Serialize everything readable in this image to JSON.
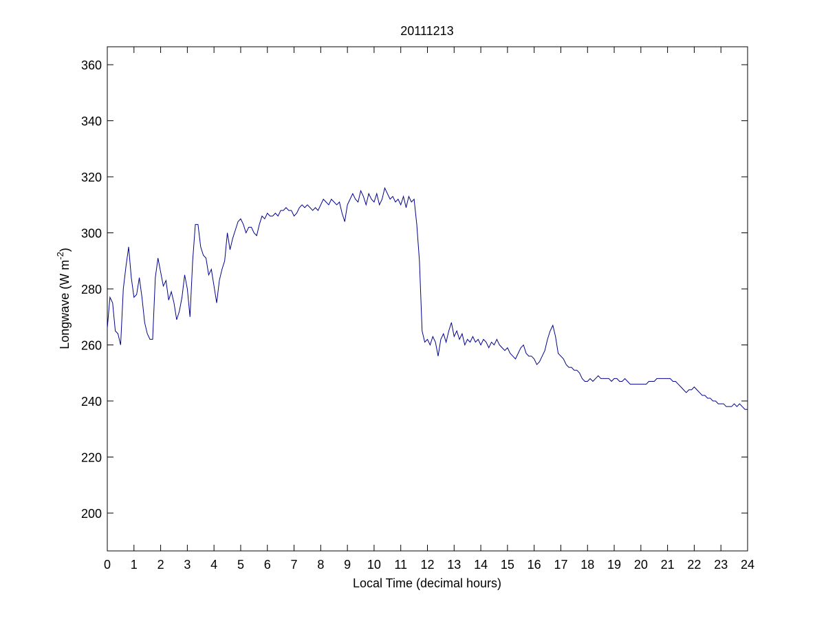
{
  "chart_data": {
    "type": "line",
    "title": "20111213",
    "xlabel": "Local Time (decimal hours)",
    "ylabel": [
      "Longwave (W m",
      "-2",
      ")"
    ],
    "xlim": [
      0,
      24
    ],
    "xticks": [
      0,
      1,
      2,
      3,
      4,
      5,
      6,
      7,
      8,
      9,
      10,
      11,
      12,
      13,
      14,
      15,
      16,
      17,
      18,
      19,
      20,
      21,
      22,
      23,
      24
    ],
    "ylim": [
      186.5,
      366.4
    ],
    "yticks": [
      200,
      220,
      240,
      260,
      280,
      300,
      320,
      340,
      360
    ],
    "grid": false,
    "x": [
      0,
      0.1,
      0.2,
      0.3,
      0.4,
      0.5,
      0.6,
      0.7,
      0.8,
      0.9,
      1,
      1.1,
      1.2,
      1.3,
      1.4,
      1.5,
      1.6,
      1.7,
      1.8,
      1.9,
      2,
      2.1,
      2.2,
      2.3,
      2.4,
      2.5,
      2.6,
      2.7,
      2.8,
      2.9,
      3,
      3.1,
      3.2,
      3.3,
      3.4,
      3.5,
      3.6,
      3.7,
      3.8,
      3.9,
      4,
      4.1,
      4.2,
      4.3,
      4.4,
      4.5,
      4.6,
      4.7,
      4.8,
      4.9,
      5,
      5.1,
      5.2,
      5.3,
      5.4,
      5.5,
      5.6,
      5.7,
      5.8,
      5.9,
      6,
      6.1,
      6.2,
      6.3,
      6.4,
      6.5,
      6.6,
      6.7,
      6.8,
      6.9,
      7,
      7.1,
      7.2,
      7.3,
      7.4,
      7.5,
      7.6,
      7.7,
      7.8,
      7.9,
      8,
      8.1,
      8.2,
      8.3,
      8.4,
      8.5,
      8.6,
      8.7,
      8.8,
      8.9,
      9,
      9.1,
      9.2,
      9.3,
      9.4,
      9.5,
      9.6,
      9.7,
      9.8,
      9.9,
      10,
      10.1,
      10.2,
      10.3,
      10.4,
      10.5,
      10.6,
      10.7,
      10.8,
      10.9,
      11,
      11.1,
      11.2,
      11.3,
      11.4,
      11.5,
      11.6,
      11.7,
      11.8,
      11.9,
      12,
      12.1,
      12.2,
      12.3,
      12.4,
      12.5,
      12.6,
      12.7,
      12.8,
      12.9,
      13,
      13.1,
      13.2,
      13.3,
      13.4,
      13.5,
      13.6,
      13.7,
      13.8,
      13.9,
      14,
      14.1,
      14.2,
      14.3,
      14.4,
      14.5,
      14.6,
      14.7,
      14.8,
      14.9,
      15,
      15.1,
      15.2,
      15.3,
      15.4,
      15.5,
      15.6,
      15.7,
      15.8,
      15.9,
      16,
      16.1,
      16.2,
      16.3,
      16.4,
      16.5,
      16.6,
      16.7,
      16.8,
      16.9,
      17,
      17.1,
      17.2,
      17.3,
      17.4,
      17.5,
      17.6,
      17.7,
      17.8,
      17.9,
      18,
      18.1,
      18.2,
      18.3,
      18.4,
      18.5,
      18.6,
      18.7,
      18.8,
      18.9,
      19,
      19.1,
      19.2,
      19.3,
      19.4,
      19.5,
      19.6,
      19.7,
      19.8,
      19.9,
      20,
      20.1,
      20.2,
      20.3,
      20.4,
      20.5,
      20.6,
      20.7,
      20.8,
      20.9,
      21,
      21.1,
      21.2,
      21.3,
      21.4,
      21.5,
      21.6,
      21.7,
      21.8,
      21.9,
      22,
      22.1,
      22.2,
      22.3,
      22.4,
      22.5,
      22.6,
      22.7,
      22.8,
      22.9,
      23,
      23.1,
      23.2,
      23.3,
      23.4,
      23.5,
      23.6,
      23.7,
      23.8,
      23.9,
      24
    ],
    "series": [
      {
        "color": "#00008b",
        "values": [
          266,
          277,
          275,
          265,
          264,
          260,
          280,
          288,
          295,
          284,
          277,
          278,
          284,
          277,
          268,
          264,
          262,
          262,
          284,
          291,
          286,
          281,
          283,
          276,
          279,
          275,
          269,
          272,
          277,
          285,
          280,
          270,
          290,
          303,
          303,
          295,
          292,
          291,
          285,
          287,
          281,
          275,
          283,
          287,
          290,
          300,
          294,
          298,
          301,
          304,
          305,
          303,
          300,
          302,
          302,
          300,
          299,
          303,
          306,
          305,
          307,
          306,
          306,
          307,
          306,
          308,
          308,
          309,
          308,
          308,
          306,
          307,
          309,
          310,
          309,
          310,
          309,
          308,
          309,
          308,
          310,
          312,
          311,
          310,
          312,
          311,
          310,
          311,
          307,
          304,
          310,
          312,
          314,
          312,
          311,
          315,
          313,
          310,
          314,
          312,
          311,
          314,
          310,
          312,
          316,
          314,
          312,
          313,
          311,
          312,
          310,
          313,
          309,
          313,
          311,
          312,
          303,
          290,
          265,
          261,
          262,
          260,
          263,
          261,
          256,
          262,
          264,
          261,
          265,
          268,
          263,
          265,
          262,
          264,
          260,
          262,
          261,
          263,
          261,
          262,
          260,
          262,
          261,
          259,
          261,
          260,
          262,
          260,
          259,
          258,
          259,
          257,
          256,
          255,
          257,
          259,
          260,
          257,
          256,
          256,
          255,
          253,
          254,
          256,
          258,
          262,
          265,
          267,
          263,
          257,
          256,
          255,
          253,
          252,
          252,
          251,
          251,
          250,
          248,
          247,
          247,
          248,
          247,
          248,
          249,
          248,
          248,
          248,
          248,
          247,
          248,
          248,
          247,
          247,
          248,
          247,
          246,
          246,
          246,
          246,
          246,
          246,
          246,
          247,
          247,
          247,
          248,
          248,
          248,
          248,
          248,
          248,
          247,
          247,
          246,
          245,
          244,
          243,
          244,
          244,
          245,
          244,
          243,
          242,
          242,
          241,
          241,
          240,
          240,
          239,
          239,
          239,
          238,
          238,
          238,
          239,
          238,
          239,
          238,
          237,
          237
        ]
      }
    ]
  }
}
